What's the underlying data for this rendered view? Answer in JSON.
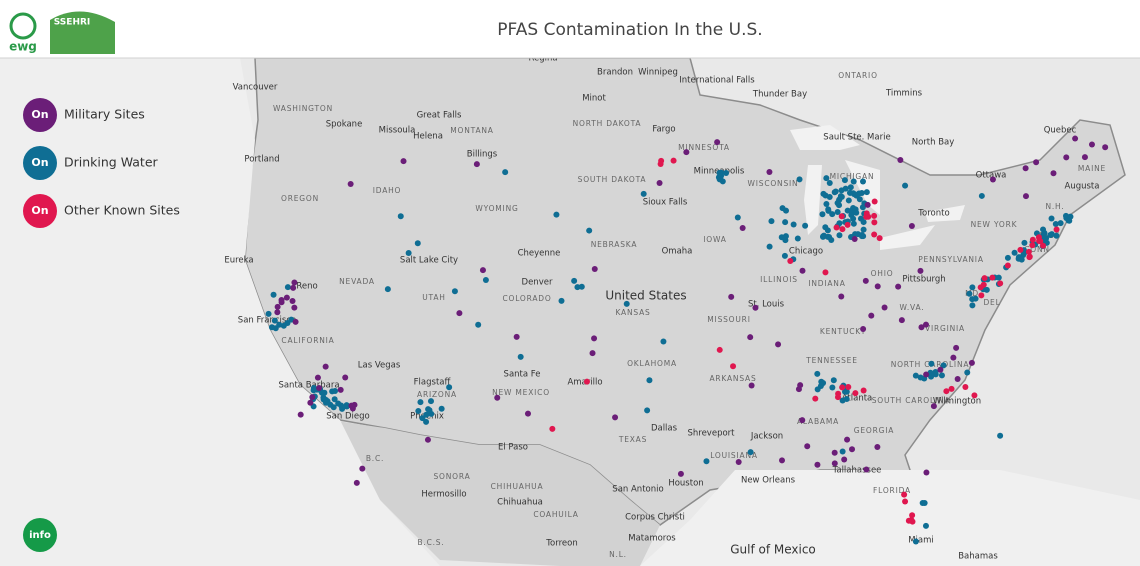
{
  "header": {
    "title": "PFAS Contamination In the U.S.",
    "logos": [
      "ewg",
      "SSEHRI"
    ]
  },
  "legend": [
    {
      "button": "On",
      "label": "Military Sites",
      "color": "#6b1e78"
    },
    {
      "button": "On",
      "label": "Drinking Water",
      "color": "#0f6e94"
    },
    {
      "button": "On",
      "label": "Other Known Sites",
      "color": "#e0174f"
    }
  ],
  "info_button": "info",
  "map_labels": [
    "Regina",
    "Brandon",
    "Winnipeg",
    "International Falls",
    "ONTARIO",
    "Vancouver",
    "Thunder Bay",
    "Timmins",
    "Minot",
    "WASHINGTON",
    "Great Falls",
    "NORTH DAKOTA",
    "Spokane",
    "Missoula",
    "MONTANA",
    "Helena",
    "Fargo",
    "Quebec",
    "Sault Ste. Marie",
    "North Bay",
    "MINNESOTA",
    "Billings",
    "Portland",
    "Minneapolis",
    "WISCONSIN",
    "MICHIGAN",
    "SOUTH DAKOTA",
    "Ottawa",
    "MAINE",
    "Augusta",
    "IDAHO",
    "OREGON",
    "WYOMING",
    "Sioux Falls",
    "Toronto",
    "N.H.",
    "NEW YORK",
    "IOWA",
    "NEBRASKA",
    "MASS",
    "Chicago",
    "Cheyenne",
    "Omaha",
    "CONN",
    "Eureka",
    "Salt Lake City",
    "PENNSYLVANIA",
    "NEVADA",
    "ILLINOIS",
    "Denver",
    "OHIO",
    "Reno",
    "INDIANA",
    "Pittsburgh",
    "UTAH",
    "COLORADO",
    "United States",
    "MD",
    "DEL",
    "St. Louis",
    "W.VA.",
    "KANSAS",
    "San Francisco",
    "MISSOURI",
    "CALIFORNIA",
    "KENTUCKY",
    "VIRGINIA",
    "Las Vegas",
    "TENNESSEE",
    "OKLAHOMA",
    "NORTH CAROLINA",
    "Santa Fe",
    "Flagstaff",
    "Amarillo",
    "ARKANSAS",
    "Santa Barbara",
    "ARIZONA",
    "NEW MEXICO",
    "SOUTH CAROLINA",
    "Atlanta",
    "Wilmington",
    "Phoenix",
    "San Diego",
    "ALABAMA",
    "Dallas",
    "Shreveport",
    "TEXAS",
    "GEORGIA",
    "Jackson",
    "El Paso",
    "LOUISIANA",
    "B.C.",
    "Tallahassee",
    "SONORA",
    "Houston",
    "New Orleans",
    "CHIHUAHUA",
    "San Antonio",
    "FLORIDA",
    "Hermosillo",
    "Chihuahua",
    "COAHUILA",
    "Corpus Christi",
    "Matamoros",
    "B.C.S.",
    "Torreon",
    "Gulf of Mexico",
    "Miami",
    "Bahamas",
    "N.L."
  ]
}
